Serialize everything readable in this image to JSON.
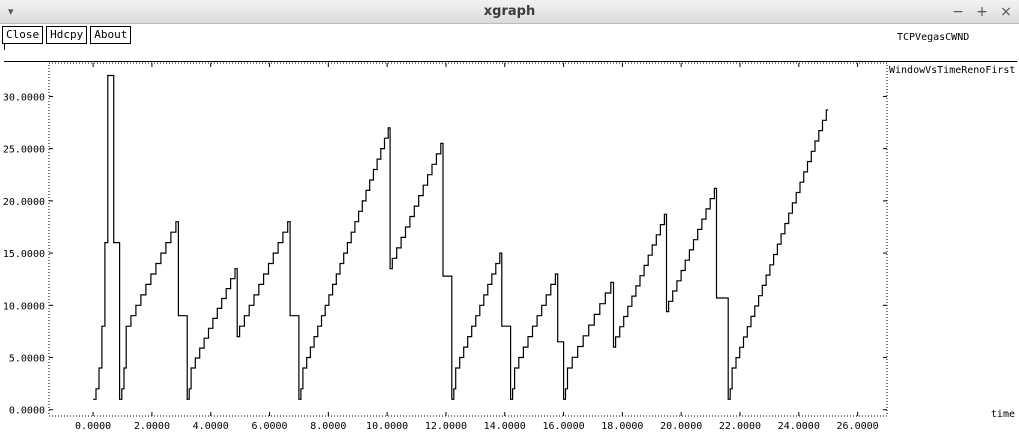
{
  "window": {
    "title": "xgraph",
    "menu_glyph": "▾",
    "controls": {
      "minimize": "−",
      "maximize": "+",
      "close": "×"
    }
  },
  "toolbar": {
    "close_label": "Close",
    "hdcpy_label": "Hdcpy",
    "about_label": "About"
  },
  "legend": {
    "top_label": "TCPVegasCWND"
  },
  "chart_data": {
    "type": "line",
    "title": "",
    "xlabel": "time",
    "ylabel": "",
    "xlim": [
      -1.5,
      27.0
    ],
    "ylim": [
      -0.6,
      33.2
    ],
    "grid": false,
    "legend_position": "top-right",
    "x_ticks": [
      0,
      2,
      4,
      6,
      8,
      10,
      12,
      14,
      16,
      18,
      20,
      22,
      24,
      26
    ],
    "y_ticks": [
      0,
      5,
      10,
      15,
      20,
      25,
      30
    ],
    "x_tick_labels": [
      "0.0000",
      "2.0000",
      "4.0000",
      "6.0000",
      "8.0000",
      "10.0000",
      "12.0000",
      "14.0000",
      "16.0000",
      "18.0000",
      "20.0000",
      "22.0000",
      "24.0000",
      "26.0000"
    ],
    "y_tick_labels": [
      "0.0000",
      "5.0000",
      "10.0000",
      "15.0000",
      "20.0000",
      "25.0000",
      "30.0000"
    ],
    "line_color": "#000000",
    "series": [
      {
        "name": "WindowVsTimeRenoFirst",
        "segments": [
          {
            "kind": "slowstart",
            "t0": 0.0,
            "t1": 0.6,
            "w0": 1,
            "w1": 32
          },
          {
            "kind": "drop",
            "t": 0.7,
            "to": 16
          },
          {
            "kind": "flat",
            "t0": 0.7,
            "t1": 0.9,
            "w": 16
          },
          {
            "kind": "drop",
            "t": 0.9,
            "to": 1
          },
          {
            "kind": "slowstart",
            "t0": 0.9,
            "t1": 1.2,
            "w0": 1,
            "w1": 8
          },
          {
            "kind": "linear",
            "t0": 1.2,
            "t1": 2.9,
            "w0": 8,
            "w1": 18
          },
          {
            "kind": "drop",
            "t": 2.9,
            "to": 9
          },
          {
            "kind": "flat",
            "t0": 2.9,
            "t1": 3.2,
            "w": 9
          },
          {
            "kind": "drop",
            "t": 3.2,
            "to": 1
          },
          {
            "kind": "slowstart",
            "t0": 3.2,
            "t1": 3.4,
            "w0": 1,
            "w1": 4
          },
          {
            "kind": "linear",
            "t0": 3.4,
            "t1": 4.9,
            "w0": 4,
            "w1": 13.5
          },
          {
            "kind": "drop",
            "t": 4.9,
            "to": 7
          },
          {
            "kind": "linear",
            "t0": 4.9,
            "t1": 6.7,
            "w0": 7,
            "w1": 18
          },
          {
            "kind": "drop",
            "t": 6.7,
            "to": 9
          },
          {
            "kind": "flat",
            "t0": 6.7,
            "t1": 7.0,
            "w": 9
          },
          {
            "kind": "drop",
            "t": 7.0,
            "to": 1
          },
          {
            "kind": "slowstart",
            "t0": 7.0,
            "t1": 7.2,
            "w0": 1,
            "w1": 4
          },
          {
            "kind": "linear",
            "t0": 7.2,
            "t1": 10.1,
            "w0": 4,
            "w1": 27
          },
          {
            "kind": "drop",
            "t": 10.1,
            "to": 13.5
          },
          {
            "kind": "linear",
            "t0": 10.1,
            "t1": 11.9,
            "w0": 13.5,
            "w1": 25.5
          },
          {
            "kind": "drop",
            "t": 11.9,
            "to": 12.8
          },
          {
            "kind": "flat",
            "t0": 11.9,
            "t1": 12.2,
            "w": 12.8
          },
          {
            "kind": "drop",
            "t": 12.2,
            "to": 1
          },
          {
            "kind": "slowstart",
            "t0": 12.2,
            "t1": 12.4,
            "w0": 1,
            "w1": 4
          },
          {
            "kind": "linear",
            "t0": 12.4,
            "t1": 13.9,
            "w0": 4,
            "w1": 15
          },
          {
            "kind": "drop",
            "t": 13.9,
            "to": 8
          },
          {
            "kind": "flat",
            "t0": 13.9,
            "t1": 14.2,
            "w": 8
          },
          {
            "kind": "drop",
            "t": 14.2,
            "to": 1
          },
          {
            "kind": "slowstart",
            "t0": 14.2,
            "t1": 14.4,
            "w0": 1,
            "w1": 4
          },
          {
            "kind": "linear",
            "t0": 14.4,
            "t1": 15.8,
            "w0": 4,
            "w1": 13
          },
          {
            "kind": "drop",
            "t": 15.8,
            "to": 6.5
          },
          {
            "kind": "flat",
            "t0": 15.8,
            "t1": 16.0,
            "w": 6.5
          },
          {
            "kind": "drop",
            "t": 16.0,
            "to": 1
          },
          {
            "kind": "slowstart",
            "t0": 16.0,
            "t1": 16.2,
            "w0": 1,
            "w1": 4
          },
          {
            "kind": "linear",
            "t0": 16.2,
            "t1": 17.7,
            "w0": 4,
            "w1": 12.2
          },
          {
            "kind": "drop",
            "t": 17.7,
            "to": 6
          },
          {
            "kind": "linear",
            "t0": 17.7,
            "t1": 19.5,
            "w0": 6,
            "w1": 18.7
          },
          {
            "kind": "drop",
            "t": 19.5,
            "to": 9.4
          },
          {
            "kind": "linear",
            "t0": 19.5,
            "t1": 21.2,
            "w0": 9.4,
            "w1": 21.2
          },
          {
            "kind": "drop",
            "t": 21.2,
            "to": 10.7
          },
          {
            "kind": "flat",
            "t0": 21.2,
            "t1": 21.6,
            "w": 10.7
          },
          {
            "kind": "drop",
            "t": 21.6,
            "to": 1
          },
          {
            "kind": "slowstart",
            "t0": 21.6,
            "t1": 21.8,
            "w0": 1,
            "w1": 4
          },
          {
            "kind": "linear",
            "t0": 21.8,
            "t1": 25.0,
            "w0": 4,
            "w1": 28.7
          }
        ]
      }
    ]
  }
}
